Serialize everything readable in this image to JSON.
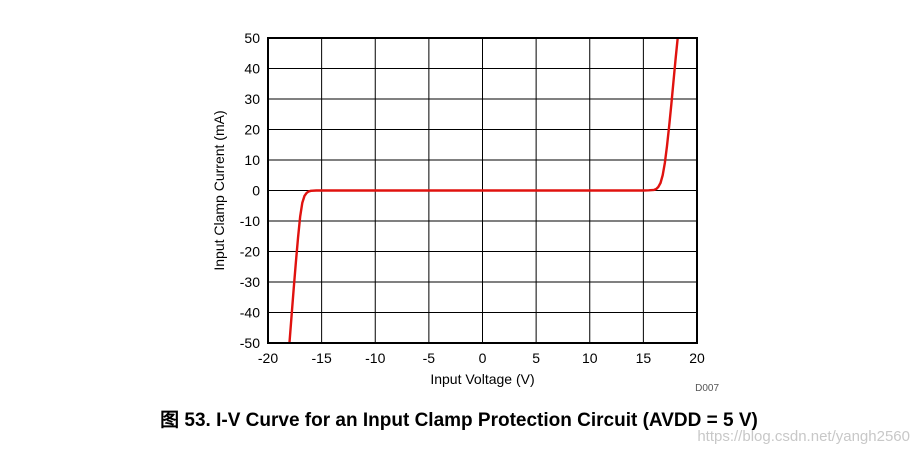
{
  "chart_data": {
    "type": "line",
    "title": "",
    "xlabel": "Input Voltage (V)",
    "ylabel": "Input Clamp Current (mA)",
    "xlim": [
      -20,
      20
    ],
    "ylim": [
      -50,
      50
    ],
    "xticks": [
      -20,
      -15,
      -10,
      -5,
      0,
      5,
      10,
      15,
      20
    ],
    "yticks": [
      -50,
      -40,
      -30,
      -20,
      -10,
      0,
      10,
      20,
      30,
      40,
      50
    ],
    "grid": true,
    "line_color": "#e0120f",
    "series": [
      {
        "x": [
          -18.0,
          -17.8,
          -17.6,
          -17.4,
          -17.2,
          -17.0,
          -16.8,
          -16.6,
          -16.4,
          -16.2,
          -16.0,
          -15.5,
          -15.0,
          -10.0,
          -5.0,
          0.0,
          5.0,
          10.0,
          15.0,
          15.5,
          16.0,
          16.2,
          16.4,
          16.6,
          16.8,
          17.0,
          17.2,
          17.4,
          17.6,
          17.8,
          18.0,
          18.2
        ],
        "y": [
          -50,
          -41,
          -32,
          -23.5,
          -15.5,
          -8.5,
          -4,
          -1.8,
          -0.8,
          -0.3,
          -0.1,
          0,
          0,
          0,
          0,
          0,
          0,
          0,
          0,
          0.05,
          0.2,
          0.5,
          1.2,
          2.5,
          5,
          9,
          14.5,
          21,
          28,
          35.5,
          43,
          50
        ]
      }
    ],
    "code": "D007"
  },
  "caption": "图 53.  I-V Curve for an Input Clamp Protection Circuit (AVDD = 5 V)",
  "watermark": "https://blog.csdn.net/yangh2560"
}
